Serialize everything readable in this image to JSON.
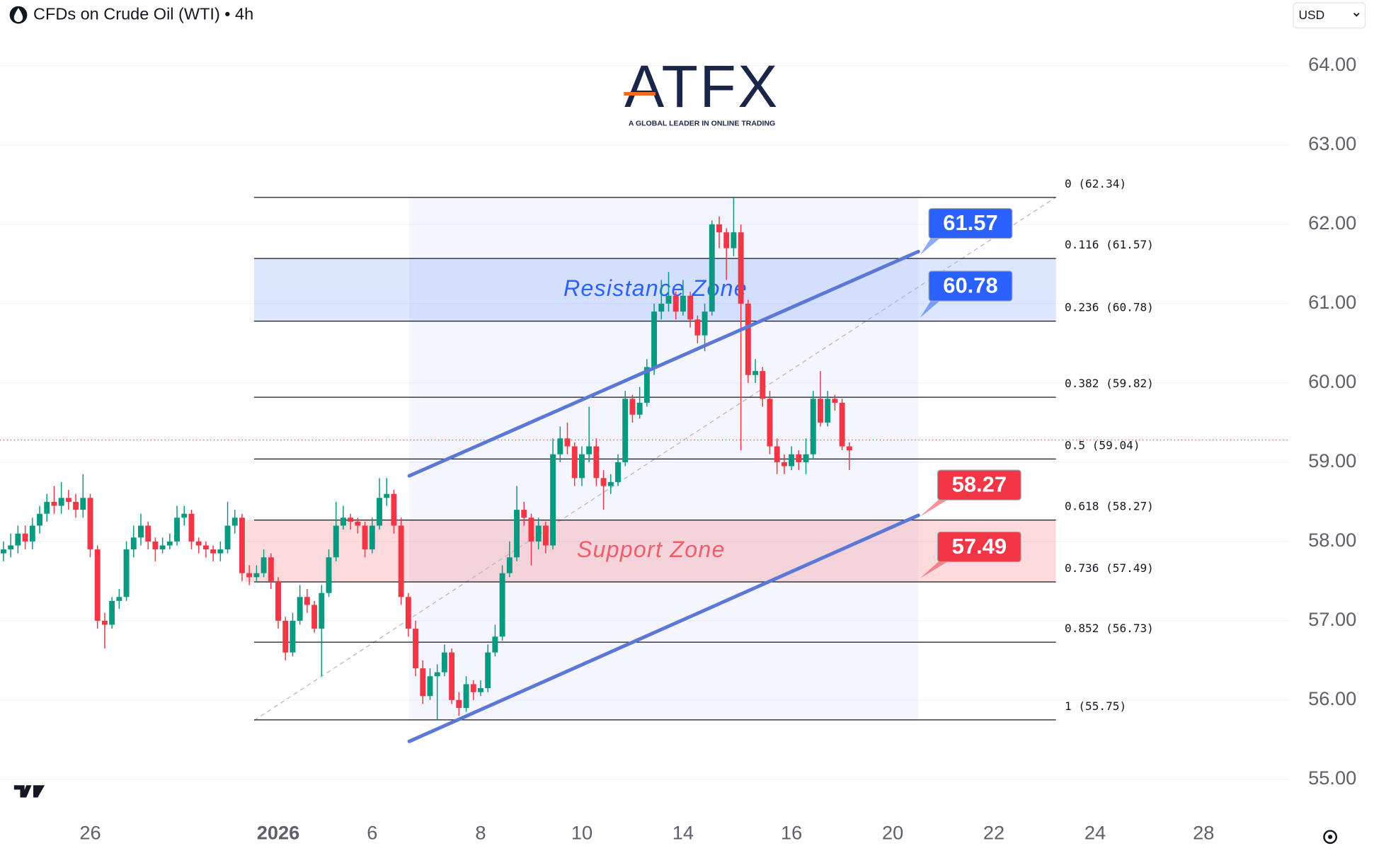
{
  "chart_data": {
    "type": "candlestick",
    "title": "CFDs on Crude Oil (WTI) • 4h",
    "currency": "USD",
    "brand": "ATFX",
    "tagline": "A GLOBAL LEADER IN ONLINE TRADING",
    "up_color": "#089981",
    "down_color": "#f23645",
    "grid": true,
    "ylim": [
      54.66,
      64.83
    ],
    "yticks": [
      {
        "value": 55,
        "label": "55.00"
      },
      {
        "value": 56,
        "label": "56.00"
      },
      {
        "value": 57,
        "label": "57.00"
      },
      {
        "value": 58,
        "label": "58.00"
      },
      {
        "value": 59,
        "label": "59.00"
      },
      {
        "value": 60,
        "label": "60.00"
      },
      {
        "value": 61,
        "label": "61.00"
      },
      {
        "value": 62,
        "label": "62.00"
      },
      {
        "value": 63,
        "label": "63.00"
      },
      {
        "value": 64,
        "label": "64.00"
      }
    ],
    "categories": [
      null,
      null,
      null,
      null,
      null,
      null,
      null,
      null,
      null,
      null,
      null,
      null,
      "26",
      null,
      null,
      null,
      null,
      null,
      null,
      null,
      null,
      null,
      null,
      null,
      null,
      null,
      null,
      null,
      null,
      null,
      null,
      null,
      null,
      null,
      null,
      null,
      null,
      null,
      "2026",
      null,
      null,
      null,
      null,
      null,
      null,
      null,
      null,
      null,
      null,
      null,
      null,
      "6",
      null,
      null,
      null,
      null,
      null,
      null,
      null,
      null,
      null,
      null,
      null,
      null,
      null,
      null,
      "8",
      null,
      null,
      null,
      null,
      null,
      null,
      null,
      null,
      null,
      null,
      null,
      null,
      null,
      "10",
      null,
      null,
      null,
      null,
      null,
      null,
      null,
      null,
      null,
      null,
      null,
      null,
      null,
      "14",
      null,
      null,
      null,
      null,
      null,
      null,
      null,
      null,
      null,
      null,
      null,
      null,
      null,
      null,
      "16",
      null,
      null,
      null,
      null,
      null,
      null,
      null,
      null,
      null,
      null,
      null,
      null,
      null,
      "20",
      null,
      null,
      null,
      null,
      null,
      null,
      null,
      null,
      null,
      null,
      null,
      null,
      null,
      "22",
      null,
      null,
      null,
      null,
      null,
      null,
      null,
      null,
      null,
      null,
      null,
      null,
      null,
      "24",
      null,
      null,
      null,
      null,
      null,
      null,
      null,
      null,
      null,
      null,
      null,
      null,
      null,
      null,
      "28",
      null,
      null,
      null,
      null,
      null,
      null,
      null,
      null,
      null,
      null,
      null
    ],
    "open": [
      57.85,
      57.9,
      57.95,
      58.1,
      58.0,
      58.2,
      58.35,
      58.5,
      58.45,
      58.55,
      58.5,
      58.4,
      58.55,
      57.9,
      57.0,
      56.95,
      57.25,
      57.3,
      57.9,
      58.05,
      58.2,
      58.0,
      57.9,
      57.95,
      58.0,
      58.3,
      58.35,
      58.0,
      57.95,
      57.9,
      57.85,
      57.9,
      58.2,
      58.3,
      57.6,
      57.55,
      57.6,
      57.8,
      57.5,
      57.0,
      56.6,
      57.0,
      57.3,
      57.2,
      56.9,
      57.35,
      57.8,
      58.2,
      58.3,
      58.25,
      58.2,
      57.9,
      58.2,
      58.55,
      58.6,
      58.2,
      57.3,
      56.9,
      56.4,
      56.05,
      56.3,
      56.35,
      56.6,
      56.0,
      55.9,
      56.2,
      56.1,
      56.15,
      56.6,
      56.8,
      57.6,
      57.8,
      58.4,
      58.3,
      58.0,
      58.2,
      57.95,
      59.1,
      59.3,
      59.2,
      58.8,
      59.1,
      59.2,
      58.8,
      58.7,
      58.75,
      59.0,
      59.8,
      59.6,
      59.75,
      60.2,
      60.9,
      61.0,
      61.1,
      60.9,
      61.1,
      60.8,
      60.6,
      60.9,
      62.0,
      61.9,
      61.7,
      61.9,
      61.0,
      60.1,
      60.15,
      59.8,
      59.2,
      59.0,
      58.95,
      59.1,
      59.0,
      59.1,
      59.8,
      59.5,
      59.8,
      59.75,
      59.2,
      null,
      null,
      null,
      null,
      null,
      null,
      null,
      null,
      null,
      null,
      null,
      null,
      null,
      null,
      null,
      null,
      null,
      null,
      null,
      null,
      null,
      null,
      null,
      null,
      null,
      null,
      null,
      null,
      null,
      null,
      null,
      null,
      null,
      null,
      null,
      null,
      null,
      null,
      null,
      null,
      null,
      null,
      null,
      null,
      null,
      null,
      null,
      null,
      null,
      null,
      null,
      null,
      null,
      null,
      null,
      null,
      null,
      null,
      null,
      null
    ],
    "high": [
      58.0,
      58.1,
      58.2,
      58.2,
      58.3,
      58.45,
      58.6,
      58.7,
      58.75,
      58.65,
      58.6,
      58.85,
      58.6,
      57.95,
      57.1,
      57.3,
      57.4,
      58.0,
      58.2,
      58.35,
      58.25,
      58.05,
      58.05,
      58.1,
      58.45,
      58.45,
      58.4,
      58.05,
      58.0,
      57.95,
      58.0,
      58.5,
      58.4,
      58.35,
      57.7,
      57.7,
      57.9,
      57.85,
      57.55,
      57.05,
      57.1,
      57.45,
      57.4,
      57.25,
      57.45,
      57.9,
      58.5,
      58.45,
      58.35,
      58.3,
      58.25,
      58.3,
      58.8,
      58.8,
      58.65,
      58.3,
      57.35,
      57.0,
      56.5,
      56.4,
      56.45,
      56.7,
      56.65,
      56.1,
      56.3,
      56.25,
      56.25,
      56.7,
      56.95,
      57.7,
      58.0,
      58.7,
      58.5,
      58.35,
      58.3,
      58.25,
      59.3,
      59.45,
      59.5,
      59.25,
      59.2,
      59.7,
      59.3,
      58.9,
      58.85,
      59.1,
      59.9,
      59.85,
      59.95,
      60.3,
      61.0,
      61.3,
      61.4,
      61.15,
      61.3,
      61.15,
      60.85,
      61.0,
      62.05,
      62.1,
      61.95,
      62.34,
      62.0,
      61.05,
      60.3,
      60.2,
      59.9,
      59.3,
      59.1,
      59.2,
      59.15,
      59.3,
      59.9,
      60.15,
      59.9,
      59.85,
      59.8,
      59.25,
      null,
      null,
      null,
      null,
      null,
      null,
      null,
      null,
      null,
      null,
      null,
      null,
      null,
      null,
      null,
      null,
      null,
      null,
      null,
      null,
      null,
      null,
      null,
      null,
      null,
      null,
      null,
      null,
      null,
      null,
      null,
      null,
      null,
      null,
      null,
      null,
      null,
      null,
      null,
      null,
      null,
      null,
      null,
      null,
      null,
      null,
      null,
      null,
      null,
      null,
      null,
      null,
      null,
      null,
      null,
      null,
      null,
      null,
      null,
      null
    ],
    "low": [
      57.75,
      57.8,
      57.85,
      57.9,
      57.9,
      58.1,
      58.25,
      58.35,
      58.35,
      58.4,
      58.3,
      58.3,
      57.8,
      56.9,
      56.65,
      56.9,
      57.15,
      57.25,
      57.8,
      57.95,
      57.9,
      57.75,
      57.85,
      57.9,
      57.95,
      58.2,
      57.9,
      57.85,
      57.8,
      57.75,
      57.75,
      57.85,
      58.1,
      57.5,
      57.45,
      57.5,
      57.55,
      57.4,
      56.9,
      56.5,
      56.55,
      56.95,
      57.1,
      56.85,
      56.3,
      57.3,
      57.75,
      58.15,
      58.15,
      58.1,
      57.8,
      57.85,
      58.15,
      58.45,
      58.1,
      57.2,
      56.8,
      56.3,
      55.95,
      56.0,
      55.75,
      56.3,
      55.95,
      55.8,
      55.85,
      56.0,
      56.05,
      56.1,
      56.55,
      56.75,
      57.55,
      57.75,
      58.2,
      57.7,
      57.9,
      57.85,
      57.9,
      59.0,
      59.1,
      58.7,
      58.7,
      59.0,
      58.7,
      58.4,
      58.6,
      58.7,
      58.95,
      59.5,
      59.55,
      59.7,
      60.1,
      60.8,
      60.9,
      60.8,
      60.85,
      60.7,
      60.5,
      60.4,
      60.85,
      61.7,
      61.3,
      61.6,
      59.15,
      60.0,
      60.0,
      59.7,
      59.1,
      58.85,
      58.85,
      58.9,
      58.9,
      58.85,
      59.05,
      59.45,
      59.45,
      59.65,
      59.15,
      58.9,
      null,
      null,
      null,
      null,
      null,
      null,
      null,
      null,
      null,
      null,
      null,
      null,
      null,
      null,
      null,
      null,
      null,
      null,
      null,
      null,
      null,
      null,
      null,
      null,
      null,
      null,
      null,
      null,
      null,
      null,
      null,
      null,
      null,
      null,
      null,
      null,
      null,
      null,
      null,
      null,
      null,
      null,
      null,
      null,
      null,
      null,
      null,
      null,
      null,
      null,
      null,
      null,
      null,
      null,
      null,
      null,
      null,
      null,
      null,
      null
    ],
    "close": [
      57.9,
      57.95,
      58.1,
      58.0,
      58.2,
      58.35,
      58.5,
      58.45,
      58.55,
      58.5,
      58.4,
      58.55,
      57.9,
      57.0,
      56.95,
      57.25,
      57.3,
      57.9,
      58.05,
      58.2,
      58.0,
      57.9,
      57.95,
      58.0,
      58.3,
      58.35,
      58.0,
      57.95,
      57.9,
      57.85,
      57.9,
      58.2,
      58.3,
      57.6,
      57.55,
      57.6,
      57.8,
      57.5,
      57.0,
      56.6,
      57.0,
      57.3,
      57.2,
      56.9,
      57.35,
      57.8,
      58.2,
      58.3,
      58.25,
      58.2,
      57.9,
      58.2,
      58.55,
      58.6,
      58.2,
      57.3,
      56.9,
      56.4,
      56.05,
      56.3,
      56.35,
      56.6,
      56.0,
      55.9,
      56.2,
      56.1,
      56.15,
      56.6,
      56.8,
      57.6,
      57.8,
      58.4,
      58.3,
      58.0,
      58.2,
      57.95,
      59.1,
      59.3,
      59.2,
      58.8,
      59.1,
      59.2,
      58.8,
      58.7,
      58.75,
      59.0,
      59.8,
      59.6,
      59.75,
      60.2,
      60.9,
      61.0,
      61.1,
      60.9,
      61.1,
      60.8,
      60.6,
      60.9,
      62.0,
      61.9,
      61.7,
      61.9,
      61.0,
      60.1,
      60.15,
      59.8,
      59.2,
      59.0,
      58.95,
      59.1,
      59.0,
      59.1,
      59.8,
      59.5,
      59.8,
      59.75,
      59.2,
      59.15,
      null,
      null,
      null,
      null,
      null,
      null,
      null,
      null,
      null,
      null,
      null,
      null,
      null,
      null,
      null,
      null,
      null,
      null,
      null,
      null,
      null,
      null,
      null,
      null,
      null,
      null,
      null,
      null,
      null,
      null,
      null,
      null,
      null,
      null,
      null,
      null,
      null,
      null,
      null,
      null,
      null,
      null,
      null,
      null,
      null,
      null,
      null,
      null,
      null,
      null,
      null,
      null,
      null,
      null,
      null,
      null,
      null,
      null,
      null,
      null
    ],
    "fib_levels": [
      {
        "label": "0 (62.34)",
        "value": 62.34
      },
      {
        "label": "0.116 (61.57)",
        "value": 61.57
      },
      {
        "label": "0.236 (60.78)",
        "value": 60.78
      },
      {
        "label": "0.382 (59.82)",
        "value": 59.82
      },
      {
        "label": "0.5 (59.04)",
        "value": 59.04
      },
      {
        "label": "0.618 (58.27)",
        "value": 58.27
      },
      {
        "label": "0.736 (57.49)",
        "value": 57.49
      },
      {
        "label": "0.852 (56.73)",
        "value": 56.73
      },
      {
        "label": "1 (55.75)",
        "value": 55.75
      }
    ],
    "zones": [
      {
        "label": "Resistance Zone",
        "from": 61.57,
        "to": 60.78,
        "color": "#2962ff"
      },
      {
        "label": "Support Zone",
        "from": 58.27,
        "to": 57.49,
        "color": "#f23645"
      }
    ],
    "price_tags": [
      {
        "value": 61.57,
        "color": "#2962ff"
      },
      {
        "value": 60.78,
        "color": "#2962ff"
      },
      {
        "value": 58.27,
        "color": "#f23645"
      },
      {
        "value": 57.49,
        "color": "#f23645"
      }
    ]
  }
}
